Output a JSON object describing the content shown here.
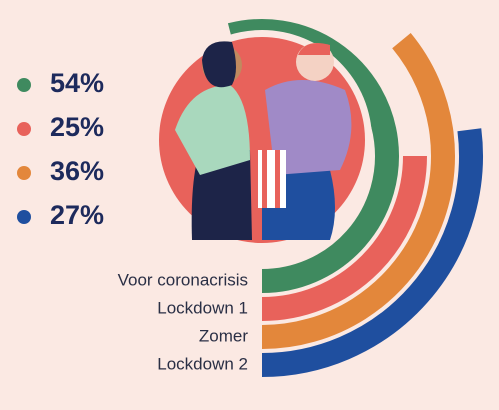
{
  "chart_data": {
    "type": "radial_bar",
    "categories": [
      "Voor coronacrisis",
      "Lockdown 1",
      "Zomer",
      "Lockdown 2"
    ],
    "values": [
      54,
      25,
      36,
      27
    ],
    "value_labels": [
      "54%",
      "25%",
      "36%",
      "27%"
    ],
    "colors": [
      "#3f8a5f",
      "#e8625b",
      "#e3873b",
      "#1f4f9f"
    ]
  }
}
